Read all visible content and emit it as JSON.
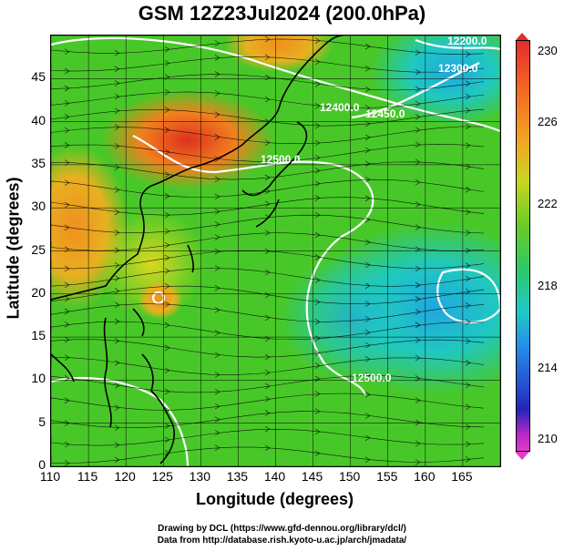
{
  "title": "GSM 12Z23Jul2024 (200.0hPa)",
  "x_axis": {
    "label": "Longitude (degrees)",
    "ticks": [
      "110",
      "115",
      "120",
      "125",
      "130",
      "135",
      "140",
      "145",
      "150",
      "155",
      "160",
      "165"
    ],
    "range": [
      110,
      170
    ]
  },
  "y_axis": {
    "label": "Latitude  (degrees)",
    "ticks": [
      "0",
      "5",
      "10",
      "15",
      "20",
      "25",
      "30",
      "35",
      "40",
      "45"
    ],
    "range": [
      0,
      50
    ]
  },
  "colorbar": {
    "labels": [
      "230",
      "226",
      "222",
      "218",
      "214",
      "210"
    ],
    "range": [
      210,
      230
    ]
  },
  "contour_labels": [
    "12300.0",
    "12450.0",
    "12400.0",
    "12500.0",
    "12500.0",
    "12200.0"
  ],
  "credits": {
    "line1": "Drawing by DCL (https://www.gfd-dennou.org/library/dcl/)",
    "line2": "Data from http://database.rish.kyoto-u.ac.jp/arch/jmadata/"
  },
  "colors": {
    "warm": "#f0801e",
    "mid": "#6acc24",
    "cool": "#1fc9c6",
    "coast": "#000000",
    "contour": "#ffffff"
  }
}
